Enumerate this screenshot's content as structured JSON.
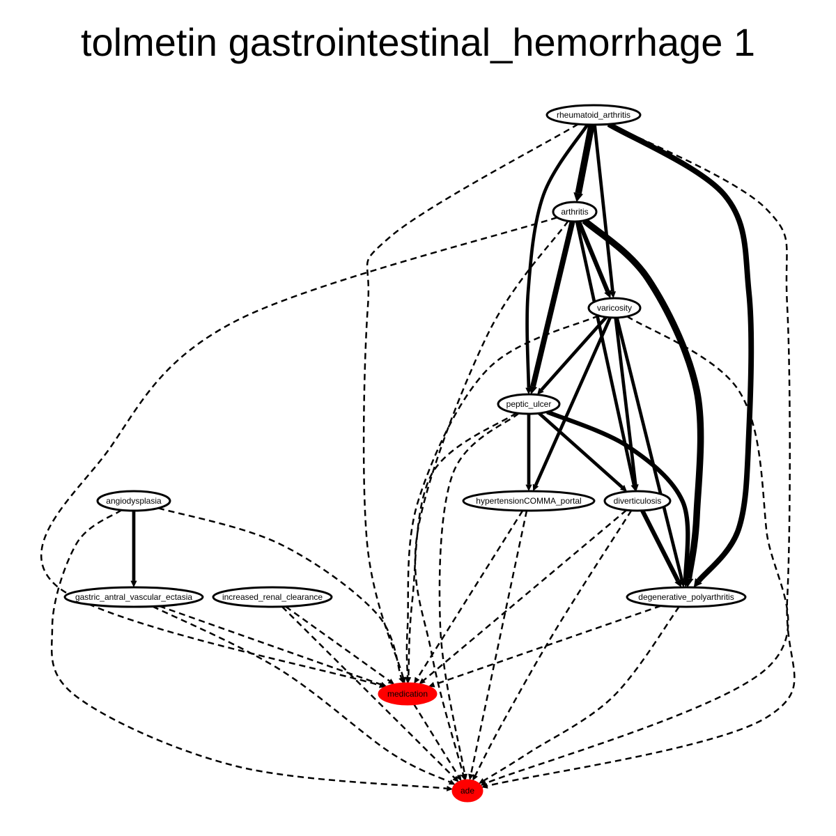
{
  "title": "tolmetin gastrointestinal_hemorrhage 1",
  "colors": {
    "highlight": "#ff0000",
    "normal": "#ffffff",
    "stroke": "#000000"
  },
  "nodes": [
    {
      "id": "rheumatoid_arthritis",
      "label": "rheumatoid_arthritis",
      "highlight": false
    },
    {
      "id": "arthritis",
      "label": "arthritis",
      "highlight": false
    },
    {
      "id": "varicosity",
      "label": "varicosity",
      "highlight": false
    },
    {
      "id": "peptic_ulcer",
      "label": "peptic_ulcer",
      "highlight": false
    },
    {
      "id": "angiodysplasia",
      "label": "angiodysplasia",
      "highlight": false
    },
    {
      "id": "hypertensionCOMMA_portal",
      "label": "hypertensionCOMMA_portal",
      "highlight": false
    },
    {
      "id": "diverticulosis",
      "label": "diverticulosis",
      "highlight": false
    },
    {
      "id": "gastric_antral_vascular_ectasia",
      "label": "gastric_antral_vascular_ectasia",
      "highlight": false
    },
    {
      "id": "increased_renal_clearance",
      "label": "increased_renal_clearance",
      "highlight": false
    },
    {
      "id": "degenerative_polyarthritis",
      "label": "degenerative_polyarthritis",
      "highlight": false
    },
    {
      "id": "medication",
      "label": "medication",
      "highlight": true
    },
    {
      "id": "ade",
      "label": "ade",
      "highlight": true
    }
  ],
  "edges": [
    {
      "from": "rheumatoid_arthritis",
      "to": "arthritis",
      "style": "solid",
      "weight": 5
    },
    {
      "from": "rheumatoid_arthritis",
      "to": "varicosity",
      "style": "solid",
      "weight": 2
    },
    {
      "from": "rheumatoid_arthritis",
      "to": "peptic_ulcer",
      "style": "solid",
      "weight": 2
    },
    {
      "from": "rheumatoid_arthritis",
      "to": "degenerative_polyarthritis",
      "style": "solid",
      "weight": 4
    },
    {
      "from": "rheumatoid_arthritis",
      "to": "medication",
      "style": "dashed",
      "weight": 1
    },
    {
      "from": "rheumatoid_arthritis",
      "to": "ade",
      "style": "dashed",
      "weight": 1
    },
    {
      "from": "arthritis",
      "to": "varicosity",
      "style": "solid",
      "weight": 3
    },
    {
      "from": "arthritis",
      "to": "peptic_ulcer",
      "style": "solid",
      "weight": 4
    },
    {
      "from": "arthritis",
      "to": "diverticulosis",
      "style": "solid",
      "weight": 2
    },
    {
      "from": "arthritis",
      "to": "degenerative_polyarthritis",
      "style": "solid",
      "weight": 5
    },
    {
      "from": "arthritis",
      "to": "medication",
      "style": "dashed",
      "weight": 1
    },
    {
      "from": "arthritis",
      "to": "ade",
      "style": "dashed",
      "weight": 1
    },
    {
      "from": "varicosity",
      "to": "peptic_ulcer",
      "style": "solid",
      "weight": 2
    },
    {
      "from": "varicosity",
      "to": "hypertensionCOMMA_portal",
      "style": "solid",
      "weight": 2
    },
    {
      "from": "varicosity",
      "to": "diverticulosis",
      "style": "solid",
      "weight": 2
    },
    {
      "from": "varicosity",
      "to": "degenerative_polyarthritis",
      "style": "solid",
      "weight": 2
    },
    {
      "from": "varicosity",
      "to": "medication",
      "style": "dashed",
      "weight": 1
    },
    {
      "from": "varicosity",
      "to": "ade",
      "style": "dashed",
      "weight": 1
    },
    {
      "from": "peptic_ulcer",
      "to": "hypertensionCOMMA_portal",
      "style": "solid",
      "weight": 2
    },
    {
      "from": "peptic_ulcer",
      "to": "diverticulosis",
      "style": "solid",
      "weight": 2
    },
    {
      "from": "peptic_ulcer",
      "to": "degenerative_polyarthritis",
      "style": "solid",
      "weight": 3
    },
    {
      "from": "peptic_ulcer",
      "to": "medication",
      "style": "dashed",
      "weight": 1
    },
    {
      "from": "peptic_ulcer",
      "to": "ade",
      "style": "dashed",
      "weight": 1
    },
    {
      "from": "angiodysplasia",
      "to": "gastric_antral_vascular_ectasia",
      "style": "solid",
      "weight": 2
    },
    {
      "from": "angiodysplasia",
      "to": "medication",
      "style": "dashed",
      "weight": 1
    },
    {
      "from": "angiodysplasia",
      "to": "ade",
      "style": "dashed",
      "weight": 1
    },
    {
      "from": "hypertensionCOMMA_portal",
      "to": "medication",
      "style": "dashed",
      "weight": 1
    },
    {
      "from": "hypertensionCOMMA_portal",
      "to": "ade",
      "style": "dashed",
      "weight": 1
    },
    {
      "from": "diverticulosis",
      "to": "degenerative_polyarthritis",
      "style": "solid",
      "weight": 3
    },
    {
      "from": "diverticulosis",
      "to": "medication",
      "style": "dashed",
      "weight": 1
    },
    {
      "from": "diverticulosis",
      "to": "ade",
      "style": "dashed",
      "weight": 1
    },
    {
      "from": "gastric_antral_vascular_ectasia",
      "to": "medication",
      "style": "dashed",
      "weight": 1
    },
    {
      "from": "gastric_antral_vascular_ectasia",
      "to": "ade",
      "style": "dashed",
      "weight": 1
    },
    {
      "from": "increased_renal_clearance",
      "to": "medication",
      "style": "dashed",
      "weight": 1
    },
    {
      "from": "increased_renal_clearance",
      "to": "ade",
      "style": "dashed",
      "weight": 1
    },
    {
      "from": "degenerative_polyarthritis",
      "to": "medication",
      "style": "dashed",
      "weight": 1
    },
    {
      "from": "degenerative_polyarthritis",
      "to": "ade",
      "style": "dashed",
      "weight": 1
    },
    {
      "from": "medication",
      "to": "ade",
      "style": "dashed",
      "weight": 1
    }
  ]
}
